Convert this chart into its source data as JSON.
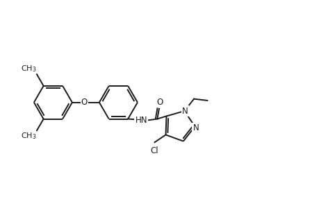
{
  "background_color": "#ffffff",
  "line_color": "#1a1a1a",
  "line_width": 1.4,
  "font_size": 8.5,
  "figsize": [
    4.6,
    3.0
  ],
  "dpi": 100,
  "xlim": [
    0,
    10
  ],
  "ylim": [
    0,
    6.5
  ]
}
